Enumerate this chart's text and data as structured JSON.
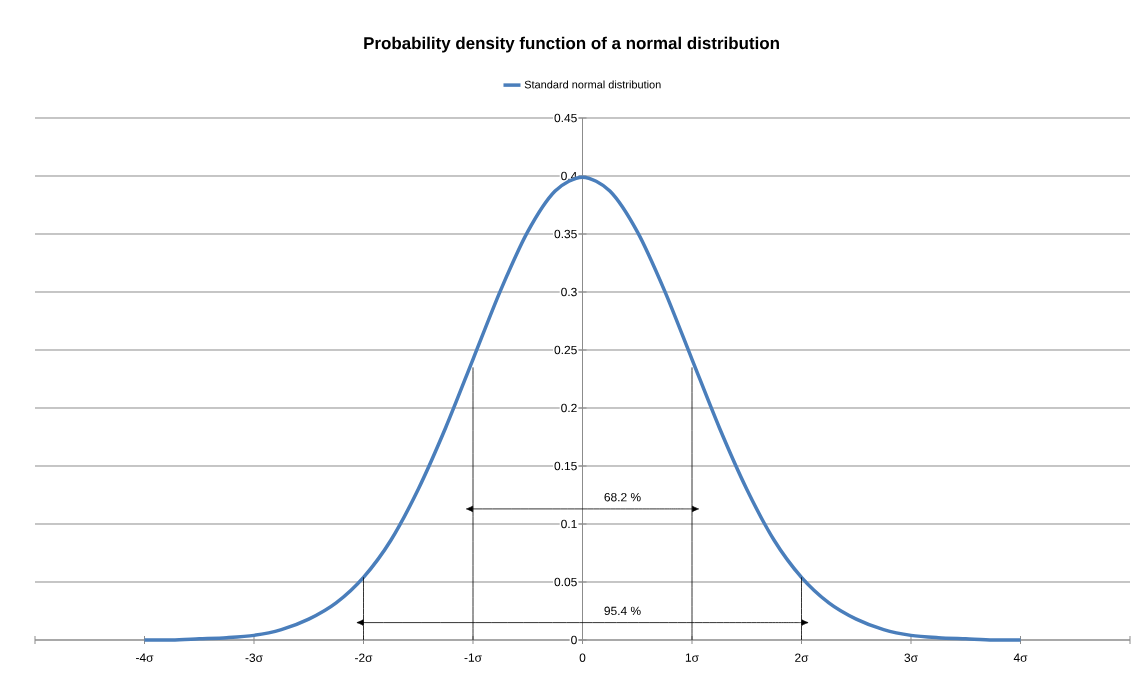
{
  "chart_data": {
    "type": "line",
    "title": "Probability density function of a normal distribution",
    "x": [
      -4,
      -3.75,
      -3.5,
      -3.25,
      -3,
      -2.75,
      -2.5,
      -2.25,
      -2,
      -1.75,
      -1.5,
      -1.25,
      -1,
      -0.75,
      -0.5,
      -0.25,
      0,
      0.25,
      0.5,
      0.75,
      1,
      1.25,
      1.5,
      1.75,
      2,
      2.25,
      2.5,
      2.75,
      3,
      3.25,
      3.5,
      3.75,
      4
    ],
    "series": [
      {
        "name": "Standard normal distribution",
        "color": "#4a7ebb",
        "values": [
          0.0,
          0.0,
          0.001,
          0.002,
          0.004,
          0.009,
          0.018,
          0.032,
          0.054,
          0.086,
          0.13,
          0.183,
          0.242,
          0.301,
          0.352,
          0.387,
          0.399,
          0.387,
          0.352,
          0.301,
          0.242,
          0.183,
          0.13,
          0.086,
          0.054,
          0.032,
          0.018,
          0.009,
          0.004,
          0.002,
          0.001,
          0.0,
          0.0
        ]
      },
      {
        "color": "#000000",
        "x": [
          -2,
          -2
        ],
        "values": [
          0,
          0.054
        ]
      },
      {
        "color": "#000000",
        "x": [
          -1,
          -1
        ],
        "values": [
          0,
          0.235
        ]
      },
      {
        "color": "#000000",
        "x": [
          1,
          1
        ],
        "values": [
          0,
          0.235
        ]
      },
      {
        "color": "#000000",
        "x": [
          2,
          2
        ],
        "values": [
          0,
          0.054
        ]
      },
      {
        "color": "#000000",
        "x": [
          -1,
          1
        ],
        "values": [
          0.113,
          0.113
        ]
      },
      {
        "color": "#000000",
        "x": [
          -2,
          2
        ],
        "values": [
          0.015,
          0.015
        ]
      }
    ],
    "xlim": [
      -5,
      5
    ],
    "xticks": [
      {
        "value": -5,
        "label": null
      },
      {
        "value": -4,
        "label": "-4σ"
      },
      {
        "value": -3,
        "label": "-3σ"
      },
      {
        "value": -2,
        "label": "-2σ"
      },
      {
        "value": -1,
        "label": "-1σ"
      },
      0,
      {
        "value": 1,
        "label": "1σ"
      },
      {
        "value": 2,
        "label": "2σ"
      },
      {
        "value": 3,
        "label": "3σ"
      },
      {
        "value": 4,
        "label": "4σ"
      },
      {
        "value": 5,
        "label": null
      }
    ],
    "ylim": [
      0,
      0.45
    ],
    "yticks": [
      0,
      0.05,
      0.1,
      0.15,
      0.2,
      0.25,
      0.3,
      0.35,
      0.4,
      0.45
    ],
    "annotations": [
      "68.2 %",
      "95.4 %"
    ],
    "grid": "y",
    "legend": "top",
    "marker": "none",
    "line_style": "solid"
  }
}
